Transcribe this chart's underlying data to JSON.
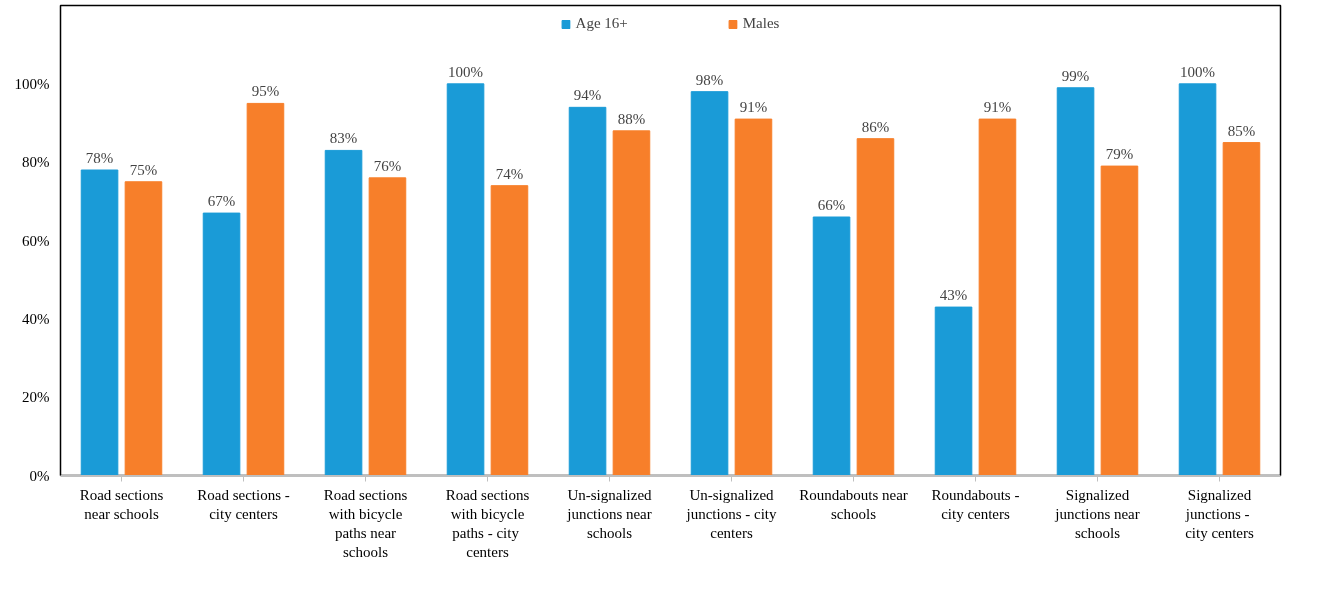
{
  "chart_data": {
    "type": "bar",
    "categories": [
      "Road sections near schools",
      "Road sections - city centers",
      "Road sections with bicycle paths near schools",
      "Road sections with bicycle paths  - city centers",
      "Un-signalized junctions near schools",
      "Un-signalized junctions - city centers",
      "Roundabouts near schools",
      "Roundabouts - city centers",
      "Signalized junctions near schools",
      "Signalized junctions  - city centers"
    ],
    "series": [
      {
        "name": "Age 16+",
        "color": "#1a9bd7",
        "values": [
          78,
          67,
          83,
          100,
          94,
          98,
          66,
          43,
          99,
          100
        ],
        "value_labels": [
          "78%",
          "67%",
          "83%",
          "100%",
          "94%",
          "98%",
          "66%",
          "43%",
          "99%",
          "100%"
        ]
      },
      {
        "name": "Males",
        "color": "#f77f2a",
        "values": [
          75,
          95,
          76,
          74,
          88,
          91,
          86,
          91,
          79,
          85
        ],
        "value_labels": [
          "75%",
          "95%",
          "76%",
          "74%",
          "88%",
          "91%",
          "86%",
          "91%",
          "79%",
          "85%"
        ]
      }
    ],
    "ylim": [
      0,
      120
    ],
    "yticks": [
      {
        "value": 0,
        "label": "0%"
      },
      {
        "value": 20,
        "label": "20%"
      },
      {
        "value": 40,
        "label": "40%"
      },
      {
        "value": 60,
        "label": "60%"
      },
      {
        "value": 80,
        "label": "80%"
      },
      {
        "value": 100,
        "label": "100%"
      }
    ],
    "grid": false,
    "legend": "top"
  }
}
